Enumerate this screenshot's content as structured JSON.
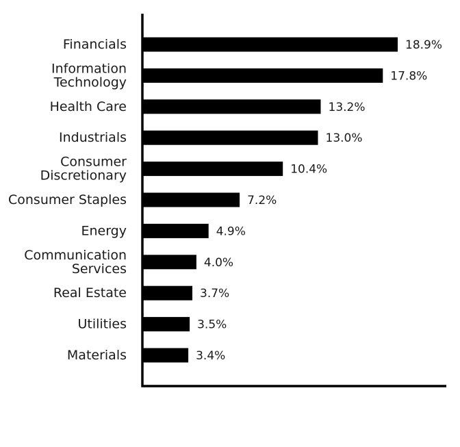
{
  "chart_data": {
    "type": "bar",
    "orientation": "horizontal",
    "categories": [
      "Financials",
      "Information Technology",
      "Health Care",
      "Industrials",
      "Consumer Discretionary",
      "Consumer Staples",
      "Energy",
      "Communication Services",
      "Real Estate",
      "Utilities",
      "Materials"
    ],
    "category_lines": [
      [
        "Financials"
      ],
      [
        "Information",
        "Technology"
      ],
      [
        "Health Care"
      ],
      [
        "Industrials"
      ],
      [
        "Consumer",
        "Discretionary"
      ],
      [
        "Consumer Staples"
      ],
      [
        "Energy"
      ],
      [
        "Communication",
        "Services"
      ],
      [
        "Real Estate"
      ],
      [
        "Utilities"
      ],
      [
        "Materials"
      ]
    ],
    "values": [
      18.9,
      17.8,
      13.2,
      13.0,
      10.4,
      7.2,
      4.9,
      4.0,
      3.7,
      3.5,
      3.4
    ],
    "value_labels": [
      "18.9%",
      "17.8%",
      "13.2%",
      "13.0%",
      "10.4%",
      "7.2%",
      "4.9%",
      "4.0%",
      "3.7%",
      "3.5%",
      "3.4%"
    ],
    "unit": "%",
    "title": "",
    "xlabel": "",
    "ylabel": "",
    "xlim": [
      0,
      22.5
    ],
    "grid": false,
    "legend": "none",
    "bar_color": "#000000"
  }
}
